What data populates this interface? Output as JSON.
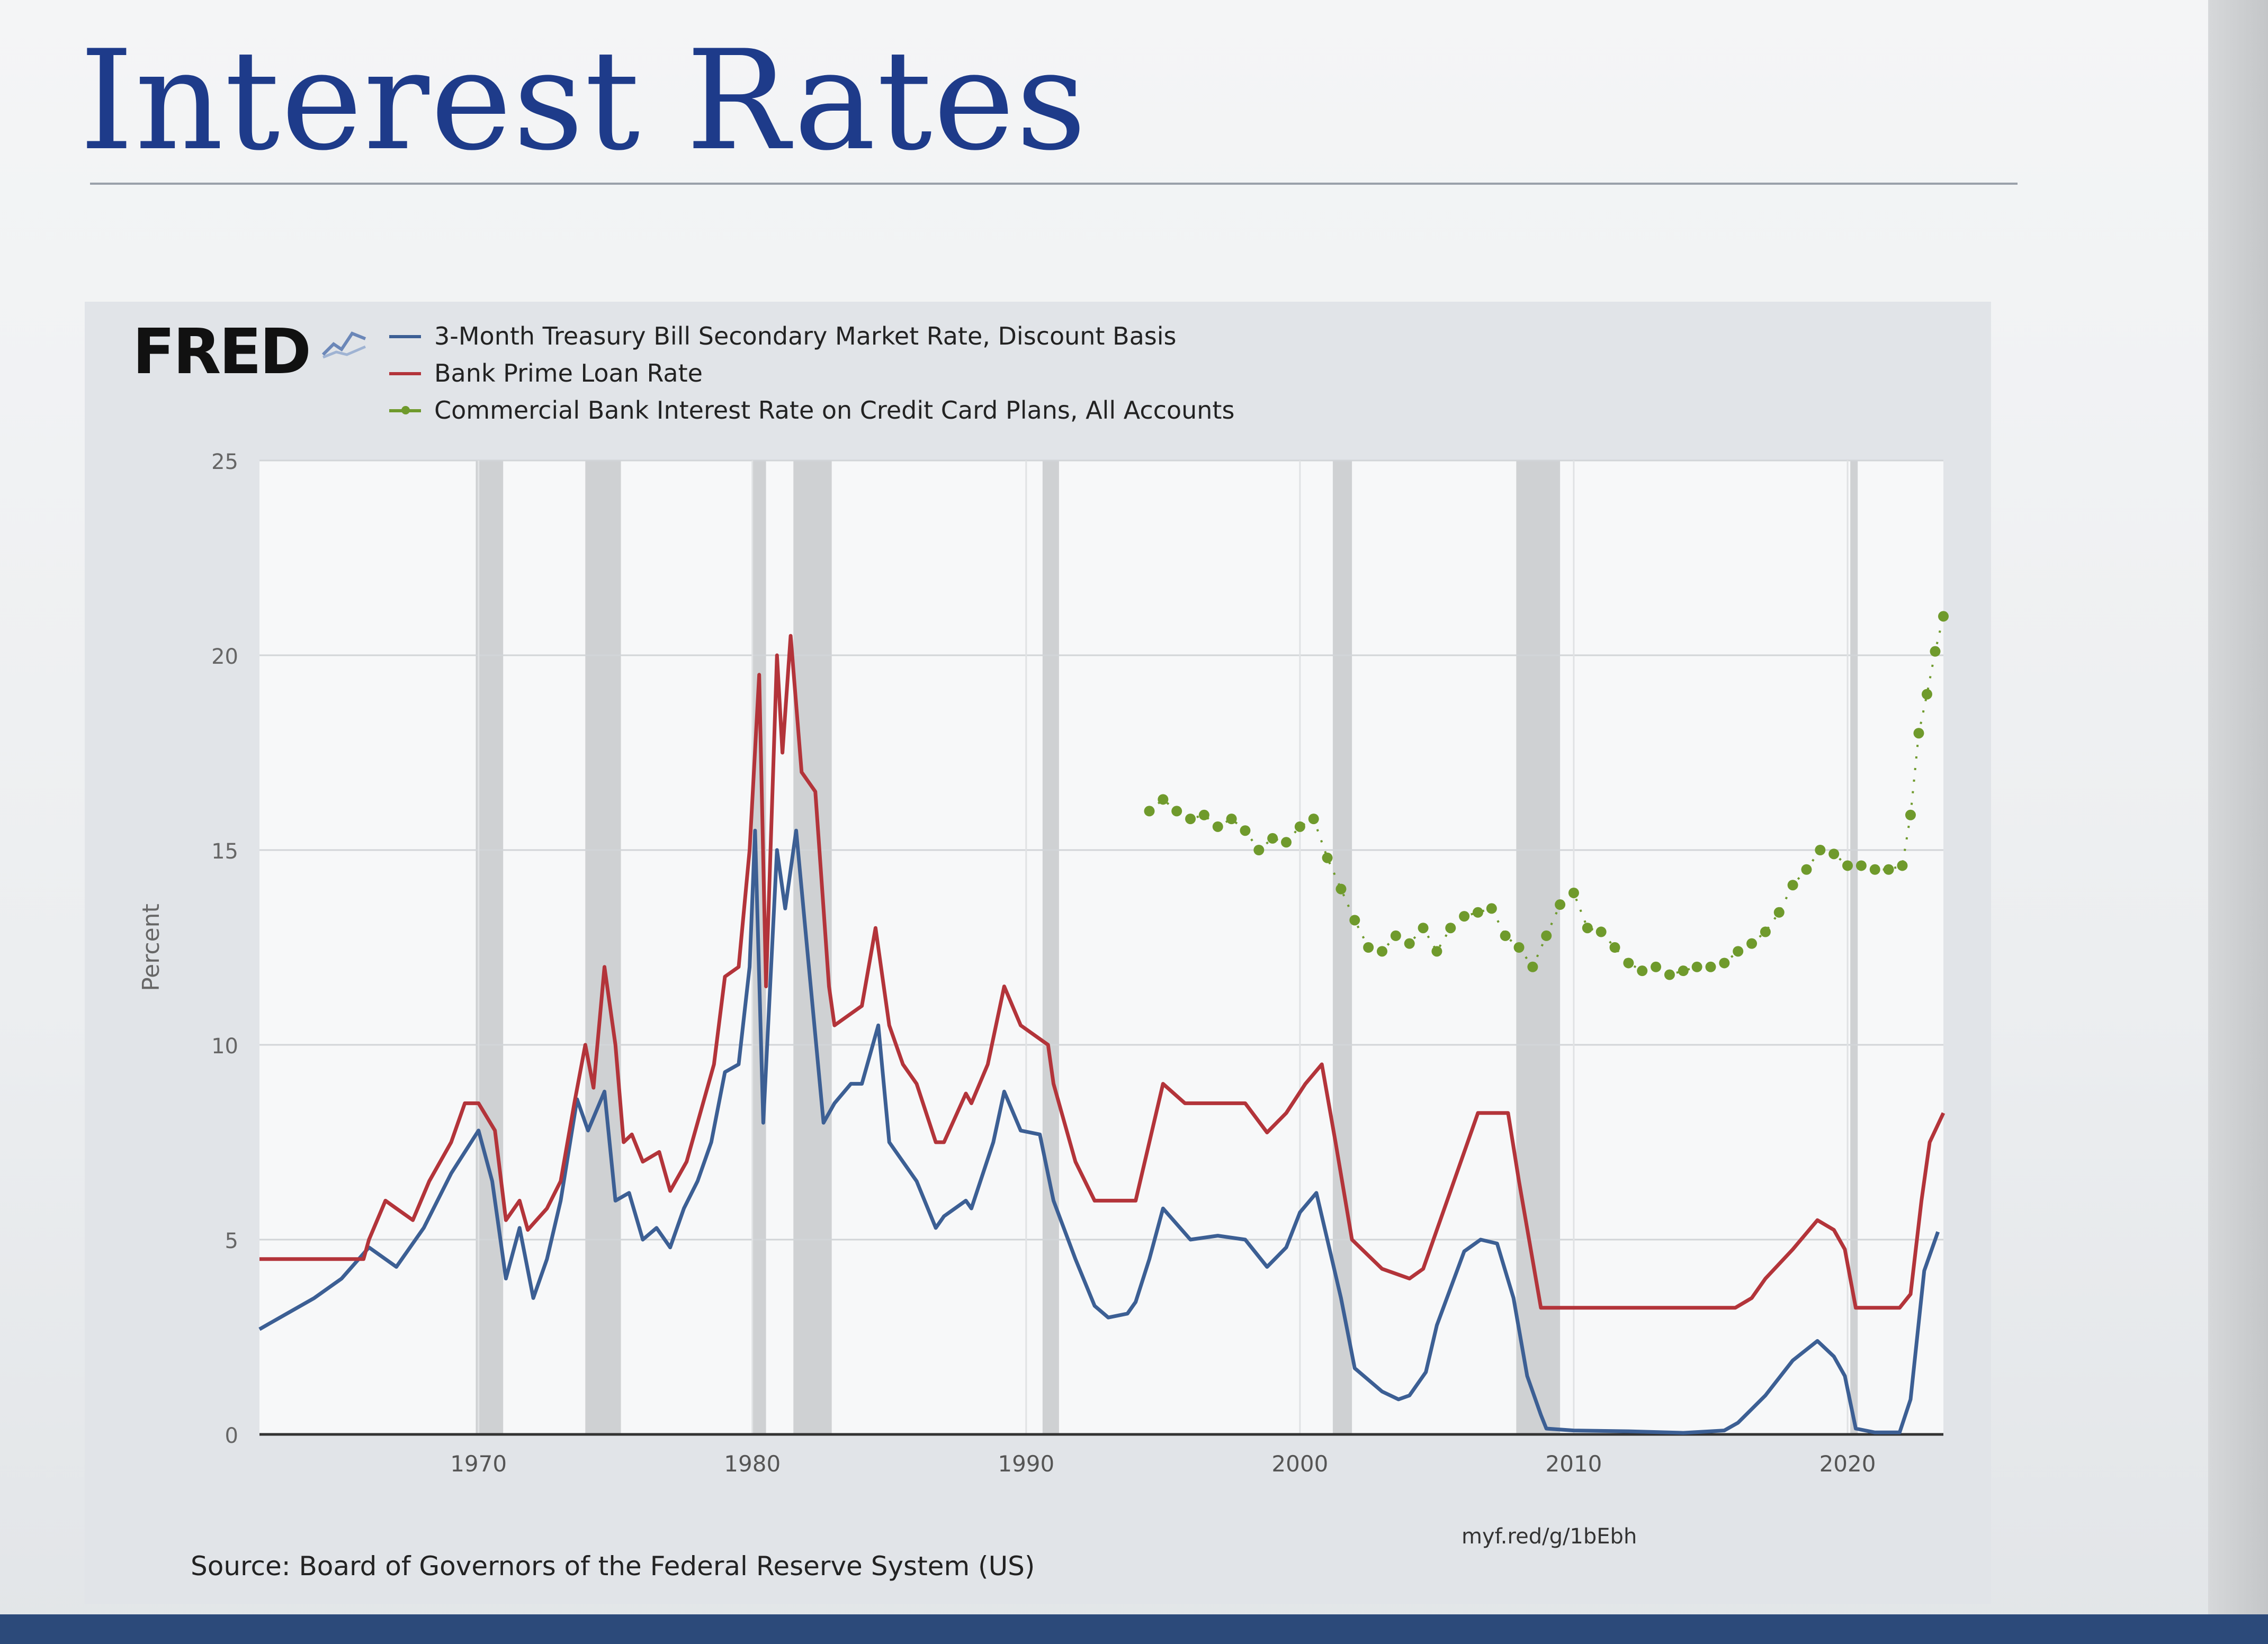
{
  "slide": {
    "title": "Interest Rates"
  },
  "fred": {
    "logo": "FRED",
    "source": "Source: Board of Governors of the Federal Reserve System (US)",
    "short_url": "myf.red/g/1bEbh"
  },
  "colors": {
    "tbill": "#3c5f94",
    "prime": "#b3343a",
    "credit_card": "#6f9a2c",
    "recession": "#cfd1d3",
    "title": "#1e3b8a"
  },
  "chart_data": {
    "type": "line",
    "title": "",
    "xlabel": "",
    "ylabel": "Percent",
    "xlim": [
      1962,
      2023.5
    ],
    "ylim": [
      0,
      25
    ],
    "yticks": [
      0,
      5,
      10,
      15,
      20,
      25
    ],
    "xticks": [
      1970,
      1980,
      1990,
      2000,
      2010,
      2020
    ],
    "grid": true,
    "legend_position": "top-left",
    "recessions": [
      [
        1969.9,
        1970.9
      ],
      [
        1973.9,
        1975.2
      ],
      [
        1980.0,
        1980.5
      ],
      [
        1981.5,
        1982.9
      ],
      [
        1990.6,
        1991.2
      ],
      [
        2001.2,
        2001.9
      ],
      [
        2007.9,
        2009.5
      ],
      [
        2020.1,
        2020.35
      ]
    ],
    "series": [
      {
        "name": "3-Month Treasury Bill Secondary Market Rate, Discount Basis",
        "style": "line",
        "color": "#3c5f94",
        "points": [
          [
            1962,
            2.7
          ],
          [
            1963,
            3.1
          ],
          [
            1964,
            3.5
          ],
          [
            1965,
            4.0
          ],
          [
            1966,
            4.8
          ],
          [
            1967,
            4.3
          ],
          [
            1968,
            5.3
          ],
          [
            1969,
            6.7
          ],
          [
            1970,
            7.8
          ],
          [
            1970.5,
            6.5
          ],
          [
            1971,
            4.0
          ],
          [
            1971.5,
            5.3
          ],
          [
            1972,
            3.5
          ],
          [
            1972.5,
            4.5
          ],
          [
            1973,
            6.0
          ],
          [
            1973.6,
            8.6
          ],
          [
            1974,
            7.8
          ],
          [
            1974.6,
            8.8
          ],
          [
            1975,
            6.0
          ],
          [
            1975.5,
            6.2
          ],
          [
            1976,
            5.0
          ],
          [
            1976.5,
            5.3
          ],
          [
            1977,
            4.8
          ],
          [
            1977.5,
            5.8
          ],
          [
            1978,
            6.5
          ],
          [
            1978.5,
            7.5
          ],
          [
            1979,
            9.3
          ],
          [
            1979.5,
            9.5
          ],
          [
            1979.9,
            12.0
          ],
          [
            1980.1,
            15.5
          ],
          [
            1980.4,
            8.0
          ],
          [
            1980.9,
            15.0
          ],
          [
            1981.2,
            13.5
          ],
          [
            1981.6,
            15.5
          ],
          [
            1982.0,
            12.5
          ],
          [
            1982.6,
            8.0
          ],
          [
            1983,
            8.5
          ],
          [
            1983.6,
            9.0
          ],
          [
            1984,
            9.0
          ],
          [
            1984.6,
            10.5
          ],
          [
            1985,
            7.5
          ],
          [
            1985.5,
            7.0
          ],
          [
            1986,
            6.5
          ],
          [
            1986.7,
            5.3
          ],
          [
            1987,
            5.6
          ],
          [
            1987.8,
            6.0
          ],
          [
            1988,
            5.8
          ],
          [
            1988.8,
            7.5
          ],
          [
            1989.2,
            8.8
          ],
          [
            1989.8,
            7.8
          ],
          [
            1990.5,
            7.7
          ],
          [
            1991,
            6.0
          ],
          [
            1991.8,
            4.5
          ],
          [
            1992.5,
            3.3
          ],
          [
            1993,
            3.0
          ],
          [
            1993.7,
            3.1
          ],
          [
            1994,
            3.4
          ],
          [
            1994.5,
            4.5
          ],
          [
            1995,
            5.8
          ],
          [
            1996,
            5.0
          ],
          [
            1997,
            5.1
          ],
          [
            1998,
            5.0
          ],
          [
            1998.8,
            4.3
          ],
          [
            1999.5,
            4.8
          ],
          [
            2000,
            5.7
          ],
          [
            2000.6,
            6.2
          ],
          [
            2001,
            5.0
          ],
          [
            2001.5,
            3.5
          ],
          [
            2002,
            1.7
          ],
          [
            2003,
            1.1
          ],
          [
            2003.6,
            0.9
          ],
          [
            2004,
            1.0
          ],
          [
            2004.6,
            1.6
          ],
          [
            2005,
            2.8
          ],
          [
            2006,
            4.7
          ],
          [
            2006.6,
            5.0
          ],
          [
            2007.2,
            4.9
          ],
          [
            2007.8,
            3.5
          ],
          [
            2008.3,
            1.5
          ],
          [
            2008.8,
            0.5
          ],
          [
            2009,
            0.15
          ],
          [
            2010,
            0.1
          ],
          [
            2012,
            0.08
          ],
          [
            2014,
            0.04
          ],
          [
            2015.5,
            0.1
          ],
          [
            2016,
            0.3
          ],
          [
            2017,
            1.0
          ],
          [
            2018,
            1.9
          ],
          [
            2018.9,
            2.4
          ],
          [
            2019.5,
            2.0
          ],
          [
            2019.9,
            1.5
          ],
          [
            2020.3,
            0.15
          ],
          [
            2021,
            0.05
          ],
          [
            2021.9,
            0.05
          ],
          [
            2022.3,
            0.9
          ],
          [
            2022.8,
            4.2
          ],
          [
            2023.3,
            5.2
          ]
        ]
      },
      {
        "name": "Bank Prime Loan Rate",
        "style": "line",
        "color": "#b3343a",
        "points": [
          [
            1962,
            4.5
          ],
          [
            1965.8,
            4.5
          ],
          [
            1966,
            5.0
          ],
          [
            1966.6,
            6.0
          ],
          [
            1967,
            5.8
          ],
          [
            1967.6,
            5.5
          ],
          [
            1968.2,
            6.5
          ],
          [
            1969,
            7.5
          ],
          [
            1969.5,
            8.5
          ],
          [
            1970,
            8.5
          ],
          [
            1970.6,
            7.8
          ],
          [
            1971,
            5.5
          ],
          [
            1971.5,
            6.0
          ],
          [
            1971.8,
            5.25
          ],
          [
            1972.5,
            5.8
          ],
          [
            1973,
            6.5
          ],
          [
            1973.5,
            8.5
          ],
          [
            1973.9,
            10.0
          ],
          [
            1974.2,
            8.9
          ],
          [
            1974.6,
            12.0
          ],
          [
            1975,
            10.0
          ],
          [
            1975.3,
            7.5
          ],
          [
            1975.6,
            7.7
          ],
          [
            1976,
            7.0
          ],
          [
            1976.6,
            7.25
          ],
          [
            1977,
            6.25
          ],
          [
            1977.6,
            7.0
          ],
          [
            1978,
            8.0
          ],
          [
            1978.6,
            9.5
          ],
          [
            1979,
            11.75
          ],
          [
            1979.5,
            12.0
          ],
          [
            1979.9,
            15.0
          ],
          [
            1980.25,
            19.5
          ],
          [
            1980.5,
            11.5
          ],
          [
            1980.9,
            20.0
          ],
          [
            1981.1,
            17.5
          ],
          [
            1981.4,
            20.5
          ],
          [
            1981.8,
            17.0
          ],
          [
            1982.3,
            16.5
          ],
          [
            1982.8,
            11.5
          ],
          [
            1983,
            10.5
          ],
          [
            1983.5,
            10.75
          ],
          [
            1984,
            11.0
          ],
          [
            1984.5,
            13.0
          ],
          [
            1985,
            10.5
          ],
          [
            1985.5,
            9.5
          ],
          [
            1986,
            9.0
          ],
          [
            1986.7,
            7.5
          ],
          [
            1987,
            7.5
          ],
          [
            1987.8,
            8.75
          ],
          [
            1988,
            8.5
          ],
          [
            1988.6,
            9.5
          ],
          [
            1989.2,
            11.5
          ],
          [
            1989.8,
            10.5
          ],
          [
            1990.8,
            10.0
          ],
          [
            1991,
            9.0
          ],
          [
            1991.8,
            7.0
          ],
          [
            1992.5,
            6.0
          ],
          [
            1994,
            6.0
          ],
          [
            1994.5,
            7.5
          ],
          [
            1995,
            9.0
          ],
          [
            1995.8,
            8.5
          ],
          [
            1998,
            8.5
          ],
          [
            1998.8,
            7.75
          ],
          [
            1999.5,
            8.25
          ],
          [
            2000.2,
            9.0
          ],
          [
            2000.8,
            9.5
          ],
          [
            2001.3,
            7.5
          ],
          [
            2001.9,
            5.0
          ],
          [
            2003,
            4.25
          ],
          [
            2004,
            4.0
          ],
          [
            2004.5,
            4.25
          ],
          [
            2006.5,
            8.25
          ],
          [
            2007.6,
            8.25
          ],
          [
            2008,
            6.5
          ],
          [
            2008.8,
            3.25
          ],
          [
            2015.9,
            3.25
          ],
          [
            2016.5,
            3.5
          ],
          [
            2017,
            4.0
          ],
          [
            2018,
            4.75
          ],
          [
            2018.9,
            5.5
          ],
          [
            2019.5,
            5.25
          ],
          [
            2019.9,
            4.75
          ],
          [
            2020.3,
            3.25
          ],
          [
            2021.9,
            3.25
          ],
          [
            2022.3,
            3.6
          ],
          [
            2022.7,
            6.0
          ],
          [
            2023.0,
            7.5
          ],
          [
            2023.5,
            8.25
          ]
        ]
      },
      {
        "name": "Commercial Bank Interest Rate on Credit Card Plans, All Accounts",
        "style": "markers-line",
        "color": "#6f9a2c",
        "points": [
          [
            1994.5,
            16.0
          ],
          [
            1995,
            16.3
          ],
          [
            1995.5,
            16.0
          ],
          [
            1996,
            15.8
          ],
          [
            1996.5,
            15.9
          ],
          [
            1997,
            15.6
          ],
          [
            1997.5,
            15.8
          ],
          [
            1998,
            15.5
          ],
          [
            1998.5,
            15.0
          ],
          [
            1999,
            15.3
          ],
          [
            1999.5,
            15.2
          ],
          [
            2000,
            15.6
          ],
          [
            2000.5,
            15.8
          ],
          [
            2001,
            14.8
          ],
          [
            2001.5,
            14.0
          ],
          [
            2002,
            13.2
          ],
          [
            2002.5,
            12.5
          ],
          [
            2003,
            12.4
          ],
          [
            2003.5,
            12.8
          ],
          [
            2004,
            12.6
          ],
          [
            2004.5,
            13.0
          ],
          [
            2005,
            12.4
          ],
          [
            2005.5,
            13.0
          ],
          [
            2006,
            13.3
          ],
          [
            2006.5,
            13.4
          ],
          [
            2007,
            13.5
          ],
          [
            2007.5,
            12.8
          ],
          [
            2008,
            12.5
          ],
          [
            2008.5,
            12.0
          ],
          [
            2009,
            12.8
          ],
          [
            2009.5,
            13.6
          ],
          [
            2010,
            13.9
          ],
          [
            2010.5,
            13.0
          ],
          [
            2011,
            12.9
          ],
          [
            2011.5,
            12.5
          ],
          [
            2012,
            12.1
          ],
          [
            2012.5,
            11.9
          ],
          [
            2013,
            12.0
          ],
          [
            2013.5,
            11.8
          ],
          [
            2014,
            11.9
          ],
          [
            2014.5,
            12.0
          ],
          [
            2015,
            12.0
          ],
          [
            2015.5,
            12.1
          ],
          [
            2016,
            12.4
          ],
          [
            2016.5,
            12.6
          ],
          [
            2017,
            12.9
          ],
          [
            2017.5,
            13.4
          ],
          [
            2018,
            14.1
          ],
          [
            2018.5,
            14.5
          ],
          [
            2019,
            15.0
          ],
          [
            2019.5,
            14.9
          ],
          [
            2020,
            14.6
          ],
          [
            2020.5,
            14.6
          ],
          [
            2021,
            14.5
          ],
          [
            2021.5,
            14.5
          ],
          [
            2022,
            14.6
          ],
          [
            2022.3,
            15.9
          ],
          [
            2022.6,
            18.0
          ],
          [
            2022.9,
            19.0
          ],
          [
            2023.2,
            20.1
          ],
          [
            2023.5,
            21.0
          ]
        ]
      }
    ]
  }
}
